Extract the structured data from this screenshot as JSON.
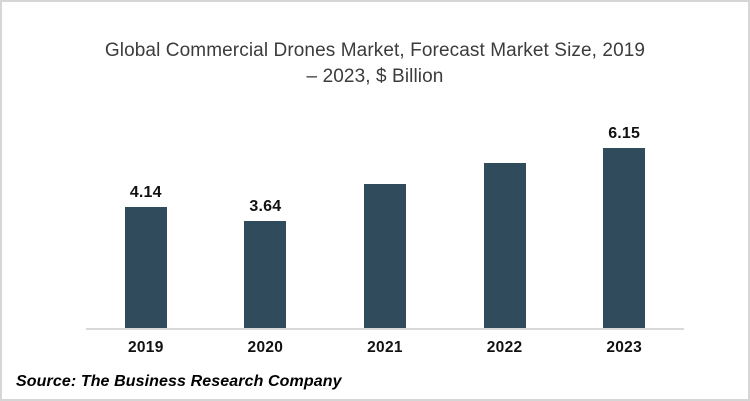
{
  "frame": {
    "background": "#ffffff",
    "border_color": "#d6d6d6"
  },
  "chart_data": {
    "type": "bar",
    "title": "Global Commercial Drones Market, Forecast Market Size, 2019 – 2023, $ Billion",
    "title_lines": [
      "Global Commercial Drones Market, Forecast Market Size, 2019",
      "– 2023, $ Billion"
    ],
    "categories": [
      "2019",
      "2020",
      "2021",
      "2022",
      "2023"
    ],
    "values": [
      4.14,
      3.64,
      4.93,
      5.65,
      6.15
    ],
    "data_labels": [
      "4.14",
      "3.64",
      "",
      "",
      "6.15"
    ],
    "xlabel": "",
    "ylabel": "",
    "ylim": [
      0,
      7
    ],
    "gridlines": false,
    "legend": false,
    "bar_color": "#2f4b5c",
    "axis_line_color": "#d9d9d9",
    "data_label_color": "#111111",
    "category_label_color": "#111111",
    "title_color": "#3c3c3c"
  },
  "source": {
    "text": "Source: The Business Research Company"
  }
}
